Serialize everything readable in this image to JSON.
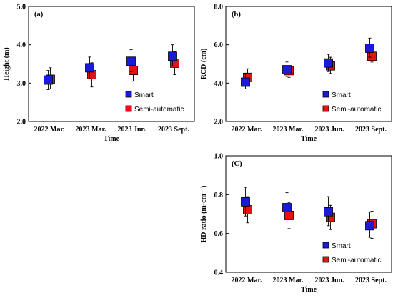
{
  "colors": {
    "smart": "#1a1adc",
    "semi": "#e3140f"
  },
  "chart_data": [
    {
      "id": "a",
      "type": "scatter",
      "panel_label": "(a)",
      "xlabel": "Time",
      "ylabel": "Height (m)",
      "categories": [
        "2022 Mar.",
        "2023 Mar.",
        "2023 Jun.",
        "2023 Sept."
      ],
      "ylim": [
        2.0,
        5.0
      ],
      "yticks": [
        "2.0",
        "3.0",
        "4.0",
        "5.0"
      ],
      "legend": {
        "position": "bottom-right",
        "entries": [
          "Smart",
          "Semi-automatic"
        ]
      },
      "series": [
        {
          "name": "Smart",
          "values": [
            3.08,
            3.4,
            3.57,
            3.7
          ],
          "err_low": [
            2.83,
            3.12,
            3.3,
            3.45
          ],
          "err_high": [
            3.33,
            3.68,
            3.87,
            4.0
          ]
        },
        {
          "name": "Semi-automatic",
          "values": [
            3.1,
            3.22,
            3.33,
            3.52
          ],
          "err_low": [
            2.85,
            2.9,
            3.05,
            3.22
          ],
          "err_high": [
            3.4,
            3.53,
            3.65,
            3.82
          ]
        }
      ]
    },
    {
      "id": "b",
      "type": "scatter",
      "panel_label": "(b)",
      "xlabel": "Time",
      "ylabel": "RCD (cm)",
      "categories": [
        "2022 Mar.",
        "2023 Mar.",
        "2023 Jun.",
        "2023 Sept."
      ],
      "ylim": [
        2.0,
        8.0
      ],
      "yticks": [
        "2.0",
        "4.0",
        "6.0",
        "8.0"
      ],
      "legend": {
        "position": "bottom-right",
        "entries": [
          "Smart",
          "Semi-automatic"
        ]
      },
      "series": [
        {
          "name": "Smart",
          "values": [
            4.05,
            4.7,
            5.05,
            5.82
          ],
          "err_low": [
            3.7,
            4.35,
            4.6,
            5.35
          ],
          "err_high": [
            4.5,
            5.1,
            5.5,
            6.35
          ]
        },
        {
          "name": "Semi-automatic",
          "values": [
            4.3,
            4.65,
            4.9,
            5.4
          ],
          "err_low": [
            3.9,
            4.3,
            4.5,
            5.1
          ],
          "err_high": [
            4.75,
            5.0,
            5.35,
            5.8
          ]
        }
      ]
    },
    {
      "id": "c",
      "type": "scatter",
      "panel_label": "(C)",
      "xlabel": "Time",
      "ylabel": "HD ratio (m·cm⁻¹)",
      "categories": [
        "2022 Mar.",
        "2023 Mar.",
        "2023 Jun.",
        "2023 Sept."
      ],
      "ylim": [
        0.4,
        1.0
      ],
      "yticks": [
        "0.4",
        "0.6",
        "0.8",
        "1.0"
      ],
      "legend": {
        "position": "bottom-right",
        "entries": [
          "Smart",
          "Semi-automatic"
        ]
      },
      "series": [
        {
          "name": "Smart",
          "values": [
            0.763,
            0.733,
            0.712,
            0.64
          ],
          "err_low": [
            0.69,
            0.66,
            0.64,
            0.58
          ],
          "err_high": [
            0.838,
            0.81,
            0.79,
            0.71
          ]
        },
        {
          "name": "Semi-automatic",
          "values": [
            0.722,
            0.693,
            0.683,
            0.65
          ],
          "err_low": [
            0.655,
            0.625,
            0.62,
            0.575
          ],
          "err_high": [
            0.79,
            0.76,
            0.745,
            0.715
          ]
        }
      ]
    }
  ]
}
